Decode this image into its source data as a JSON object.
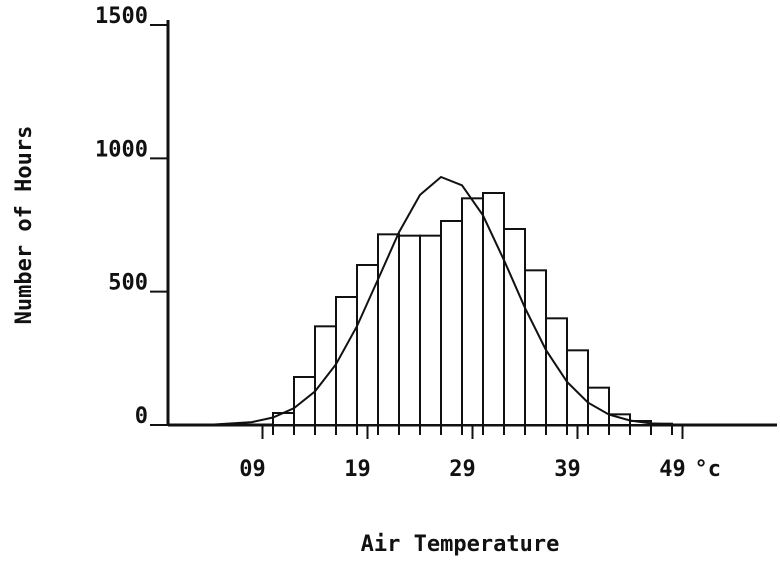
{
  "chart_data": {
    "type": "histogram",
    "xlabel": "Air Temperature",
    "ylabel": "Number of Hours",
    "x_unit": "°c",
    "bins": [
      10,
      12,
      14,
      16,
      18,
      20,
      22,
      24,
      26,
      28,
      30,
      32,
      34,
      36,
      38,
      40,
      42,
      44,
      46,
      48
    ],
    "values": [
      45,
      180,
      370,
      480,
      600,
      715,
      710,
      710,
      765,
      850,
      870,
      735,
      580,
      400,
      280,
      140,
      40,
      15,
      5
    ],
    "color": "#ffffff",
    "curve": {
      "x": [
        0,
        4,
        8,
        10,
        12,
        14,
        16,
        18,
        20,
        22,
        24,
        26,
        28,
        30,
        32,
        34,
        36,
        38,
        40,
        42,
        44,
        46,
        48,
        50
      ],
      "values": [
        0,
        1,
        11,
        28,
        63,
        126,
        228,
        371,
        546,
        723,
        863,
        930,
        899,
        786,
        618,
        439,
        281,
        162,
        84,
        39,
        17,
        6,
        2,
        0
      ]
    },
    "xlim": [
      0,
      58
    ],
    "ylim": [
      0,
      1500
    ],
    "xticks": [
      {
        "value": 9,
        "label": "09"
      },
      19,
      29,
      39,
      49
    ],
    "yticks": [
      0,
      500,
      1000,
      1500
    ]
  }
}
